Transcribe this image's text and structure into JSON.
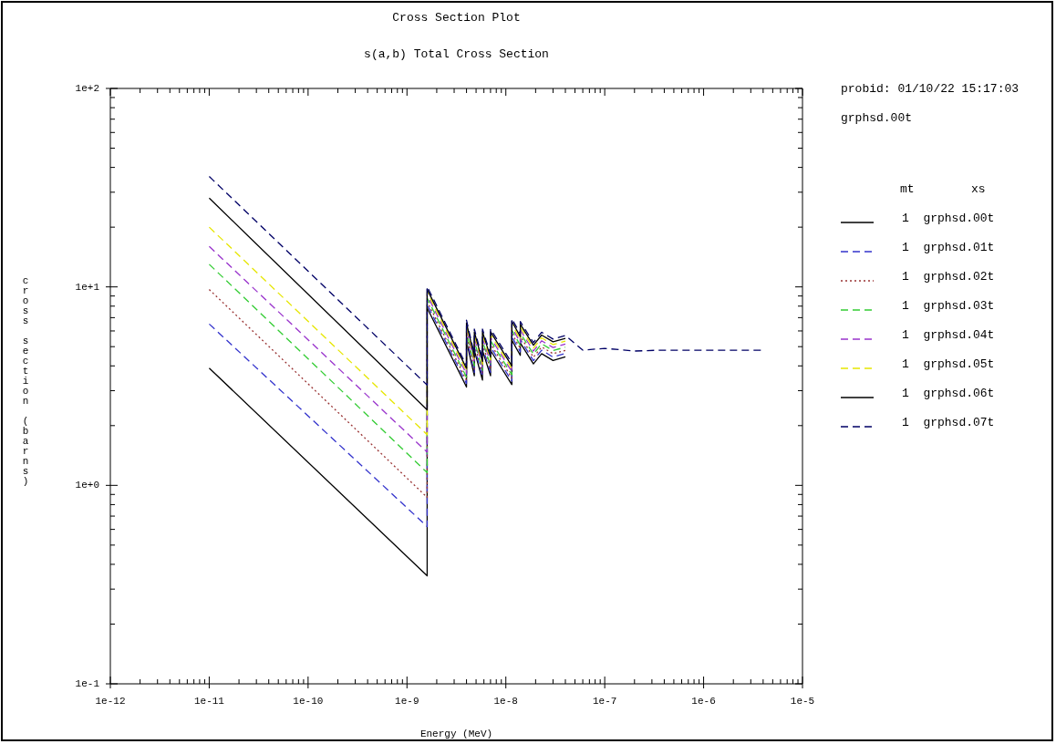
{
  "chart_data": {
    "type": "line",
    "title": "Cross Section Plot",
    "subtitle": "s(a,b) Total Cross Section",
    "xlabel": "Energy (MeV)",
    "ylabel": "cross section (barns)",
    "legend_title": "mt        xs",
    "legend": "right",
    "grid": false,
    "log": "xy",
    "marker": "none",
    "annotations": [
      "probid: 01/10/22 15:17:03",
      "grphsd.00t"
    ],
    "xlim": [
      1e-12,
      1e-05
    ],
    "xticks": [
      {
        "value": 1e-12,
        "label": "1e-12"
      },
      {
        "value": 2e-12,
        "label": null
      },
      {
        "value": 3e-12,
        "label": null
      },
      {
        "value": 4e-12,
        "label": null
      },
      {
        "value": 5e-12,
        "label": null
      },
      {
        "value": 6e-12,
        "label": null
      },
      {
        "value": 7e-12,
        "label": null
      },
      {
        "value": 8e-12,
        "label": null
      },
      {
        "value": 9e-12,
        "label": null
      },
      {
        "value": 1e-11,
        "label": "1e-11"
      },
      {
        "value": 2e-11,
        "label": null
      },
      {
        "value": 3e-11,
        "label": null
      },
      {
        "value": 4e-11,
        "label": null
      },
      {
        "value": 5e-11,
        "label": null
      },
      {
        "value": 6e-11,
        "label": null
      },
      {
        "value": 7e-11,
        "label": null
      },
      {
        "value": 8e-11,
        "label": null
      },
      {
        "value": 9e-11,
        "label": null
      },
      {
        "value": 1e-10,
        "label": "1e-10"
      },
      {
        "value": 2e-10,
        "label": null
      },
      {
        "value": 3e-10,
        "label": null
      },
      {
        "value": 4e-10,
        "label": null
      },
      {
        "value": 5e-10,
        "label": null
      },
      {
        "value": 6e-10,
        "label": null
      },
      {
        "value": 7e-10,
        "label": null
      },
      {
        "value": 8e-10,
        "label": null
      },
      {
        "value": 9e-10,
        "label": null
      },
      {
        "value": 1e-09,
        "label": "1e-9"
      },
      {
        "value": 2e-09,
        "label": null
      },
      {
        "value": 3e-09,
        "label": null
      },
      {
        "value": 4e-09,
        "label": null
      },
      {
        "value": 5e-09,
        "label": null
      },
      {
        "value": 6e-09,
        "label": null
      },
      {
        "value": 7e-09,
        "label": null
      },
      {
        "value": 8e-09,
        "label": null
      },
      {
        "value": 9e-09,
        "label": null
      },
      {
        "value": 1e-08,
        "label": "1e-8"
      },
      {
        "value": 2e-08,
        "label": null
      },
      {
        "value": 3e-08,
        "label": null
      },
      {
        "value": 4e-08,
        "label": null
      },
      {
        "value": 5e-08,
        "label": null
      },
      {
        "value": 6e-08,
        "label": null
      },
      {
        "value": 7e-08,
        "label": null
      },
      {
        "value": 8e-08,
        "label": null
      },
      {
        "value": 9e-08,
        "label": null
      },
      {
        "value": 1e-07,
        "label": "1e-7"
      },
      {
        "value": 2e-07,
        "label": null
      },
      {
        "value": 3e-07,
        "label": null
      },
      {
        "value": 4e-07,
        "label": null
      },
      {
        "value": 5e-07,
        "label": null
      },
      {
        "value": 6e-07,
        "label": null
      },
      {
        "value": 7e-07,
        "label": null
      },
      {
        "value": 8e-07,
        "label": null
      },
      {
        "value": 9e-07,
        "label": null
      },
      {
        "value": 1e-06,
        "label": "1e-6"
      },
      {
        "value": 2e-06,
        "label": null
      },
      {
        "value": 3e-06,
        "label": null
      },
      {
        "value": 4e-06,
        "label": null
      },
      {
        "value": 5e-06,
        "label": null
      },
      {
        "value": 6e-06,
        "label": null
      },
      {
        "value": 7e-06,
        "label": null
      },
      {
        "value": 8e-06,
        "label": null
      },
      {
        "value": 9e-06,
        "label": null
      },
      {
        "value": 1e-05,
        "label": "1e-5"
      }
    ],
    "ylim": [
      0.1,
      100
    ],
    "yticks": [
      {
        "value": 0.1,
        "label": "1e-1"
      },
      {
        "value": 0.2,
        "label": null
      },
      {
        "value": 0.3,
        "label": null
      },
      {
        "value": 0.4,
        "label": null
      },
      {
        "value": 0.5,
        "label": null
      },
      {
        "value": 0.6,
        "label": null
      },
      {
        "value": 0.7,
        "label": null
      },
      {
        "value": 0.8,
        "label": null
      },
      {
        "value": 0.9,
        "label": null
      },
      {
        "value": 1,
        "label": "1e+0"
      },
      {
        "value": 2,
        "label": null
      },
      {
        "value": 3,
        "label": null
      },
      {
        "value": 4,
        "label": null
      },
      {
        "value": 5,
        "label": null
      },
      {
        "value": 6,
        "label": null
      },
      {
        "value": 7,
        "label": null
      },
      {
        "value": 8,
        "label": null
      },
      {
        "value": 9,
        "label": null
      },
      {
        "value": 10,
        "label": "1e+1"
      },
      {
        "value": 20,
        "label": null
      },
      {
        "value": 30,
        "label": null
      },
      {
        "value": 40,
        "label": null
      },
      {
        "value": 50,
        "label": null
      },
      {
        "value": 60,
        "label": null
      },
      {
        "value": 70,
        "label": null
      },
      {
        "value": 80,
        "label": null
      },
      {
        "value": 90,
        "label": null
      },
      {
        "value": 100,
        "label": "1e+2"
      }
    ],
    "series": [
      {
        "name": "1  grphsd.00t",
        "color": "#000000",
        "line_style": "solid",
        "x": [
          1e-11,
          1.6e-09,
          1.6e-09,
          4e-09,
          4e-09,
          4.8e-09,
          4.8e-09,
          5.8e-09,
          5.8e-09,
          7e-09,
          7e-09,
          1.15e-08,
          1.15e-08,
          1.4e-08,
          1.4e-08,
          1.9e-08,
          2.3e-08,
          3e-08,
          4e-08
        ],
        "values": [
          3.9,
          0.35,
          7.83,
          3.13,
          5.31,
          3.57,
          4.79,
          3.39,
          4.79,
          3.57,
          4.79,
          3.22,
          5.39,
          4.52,
          5.22,
          4.09,
          4.61,
          4.26,
          4.44
        ]
      },
      {
        "name": "1  grphsd.01t",
        "color": "#3333cc",
        "line_style": "dashed",
        "x": [
          1e-11,
          1.6e-09,
          1.6e-09,
          4e-09,
          4e-09,
          4.8e-09,
          4.8e-09,
          5.8e-09,
          5.8e-09,
          7e-09,
          7e-09,
          1.15e-08,
          1.15e-08,
          1.4e-08,
          1.4e-08,
          1.9e-08,
          2.3e-08,
          3e-08,
          4e-08
        ],
        "values": [
          6.5,
          0.62,
          8.15,
          3.26,
          5.52,
          3.71,
          4.98,
          3.53,
          4.98,
          3.71,
          4.98,
          3.35,
          5.61,
          4.71,
          5.43,
          4.25,
          4.8,
          4.43,
          4.62
        ]
      },
      {
        "name": "1  grphsd.02t",
        "color": "#993333",
        "line_style": "dotted",
        "x": [
          1e-11,
          1.6e-09,
          1.6e-09,
          4e-09,
          4e-09,
          4.8e-09,
          4.8e-09,
          5.8e-09,
          5.8e-09,
          7e-09,
          7e-09,
          1.15e-08,
          1.15e-08,
          1.4e-08,
          1.4e-08,
          1.9e-08,
          2.3e-08,
          3e-08,
          4e-08
        ],
        "values": [
          9.7,
          0.87,
          8.46,
          3.38,
          5.73,
          3.85,
          5.17,
          3.67,
          5.17,
          3.85,
          5.17,
          3.48,
          5.83,
          4.89,
          5.64,
          4.42,
          4.98,
          4.61,
          4.79
        ]
      },
      {
        "name": "1  grphsd.03t",
        "color": "#33cc33",
        "line_style": "dashed",
        "x": [
          1e-11,
          1.6e-09,
          1.6e-09,
          4e-09,
          4e-09,
          4.8e-09,
          4.8e-09,
          5.8e-09,
          5.8e-09,
          7e-09,
          7e-09,
          1.15e-08,
          1.15e-08,
          1.4e-08,
          1.4e-08,
          1.9e-08,
          2.3e-08,
          3e-08,
          4e-08
        ],
        "values": [
          13,
          1.16,
          8.78,
          3.51,
          5.95,
          4.0,
          5.36,
          3.8,
          5.36,
          4.0,
          5.36,
          3.61,
          6.05,
          5.07,
          5.85,
          4.58,
          5.17,
          4.78,
          4.97
        ]
      },
      {
        "name": "1  grphsd.04t",
        "color": "#9933cc",
        "line_style": "dashed",
        "x": [
          1e-11,
          1.6e-09,
          1.6e-09,
          4e-09,
          4e-09,
          4.8e-09,
          4.8e-09,
          5.8e-09,
          5.8e-09,
          7e-09,
          7e-09,
          1.15e-08,
          1.15e-08,
          1.4e-08,
          1.4e-08,
          1.9e-08,
          2.3e-08,
          3e-08,
          4e-08
        ],
        "values": [
          16,
          1.47,
          9.09,
          3.64,
          6.16,
          4.14,
          5.56,
          3.94,
          5.56,
          4.14,
          5.56,
          3.74,
          6.26,
          5.25,
          6.06,
          4.75,
          5.35,
          4.95,
          5.15
        ]
      },
      {
        "name": "1  grphsd.05t",
        "color": "#e6e600",
        "line_style": "dashed",
        "x": [
          1e-11,
          1.6e-09,
          1.6e-09,
          4e-09,
          4e-09,
          4.8e-09,
          4.8e-09,
          5.8e-09,
          5.8e-09,
          7e-09,
          7e-09,
          1.15e-08,
          1.15e-08,
          1.4e-08,
          1.4e-08,
          1.9e-08,
          2.3e-08,
          3e-08,
          4e-08
        ],
        "values": [
          20,
          1.8,
          9.41,
          3.76,
          6.37,
          4.28,
          5.75,
          4.08,
          5.75,
          4.28,
          5.75,
          3.87,
          6.48,
          5.43,
          6.27,
          4.91,
          5.54,
          5.12,
          5.33
        ]
      },
      {
        "name": "1  grphsd.06t",
        "color": "#000000",
        "line_style": "solid",
        "x": [
          1e-11,
          1.6e-09,
          1.6e-09,
          4e-09,
          4e-09,
          4.8e-09,
          4.8e-09,
          5.8e-09,
          5.8e-09,
          7e-09,
          7e-09,
          1.15e-08,
          1.15e-08,
          1.4e-08,
          1.4e-08,
          1.9e-08,
          2.3e-08,
          3e-08,
          4e-08
        ],
        "values": [
          28,
          2.4,
          9.72,
          3.89,
          6.59,
          4.43,
          5.94,
          4.21,
          5.94,
          4.43,
          5.94,
          4.0,
          6.7,
          5.62,
          6.48,
          5.08,
          5.72,
          5.29,
          5.51
        ]
      },
      {
        "name": "1  grphsd.07t",
        "color": "#000066",
        "line_style": "dashed",
        "x": [
          1e-11,
          1.6e-09,
          1.6e-09,
          4e-09,
          4e-09,
          4.8e-09,
          4.8e-09,
          5.8e-09,
          5.8e-09,
          7e-09,
          7e-09,
          1.15e-08,
          1.15e-08,
          1.4e-08,
          1.4e-08,
          1.9e-08,
          2.3e-08,
          3e-08,
          4e-08,
          6e-08,
          1e-07,
          2e-07,
          3.6e-07,
          4e-06
        ],
        "values": [
          36,
          3.2,
          10.04,
          4.01,
          6.8,
          4.57,
          6.13,
          4.35,
          6.13,
          4.57,
          6.13,
          4.13,
          6.91,
          5.8,
          6.69,
          5.24,
          5.91,
          5.46,
          5.69,
          4.8,
          4.9,
          4.75,
          4.8,
          4.8
        ]
      }
    ]
  }
}
